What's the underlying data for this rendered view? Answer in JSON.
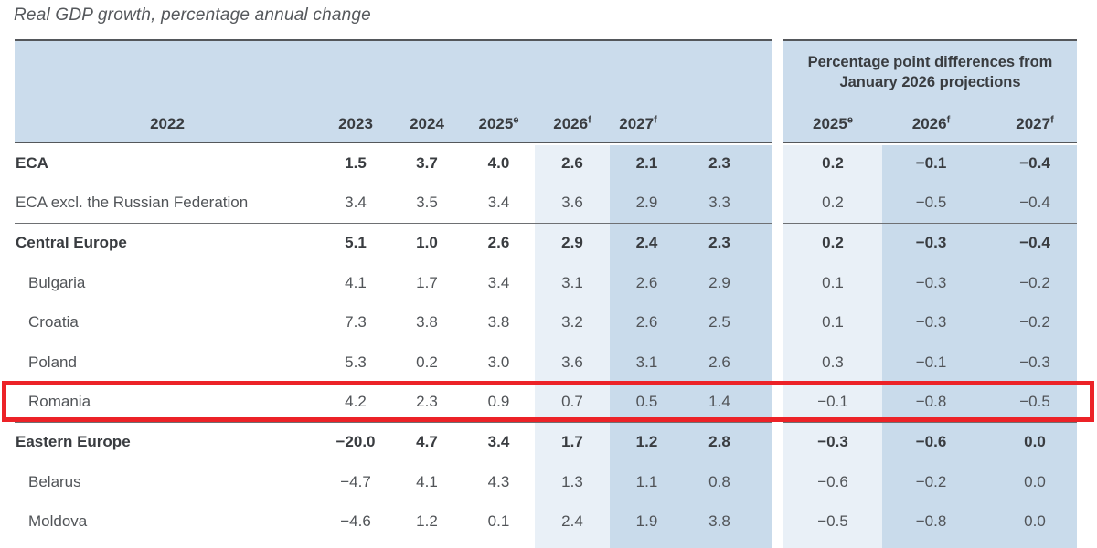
{
  "title": "Real GDP growth, percentage annual change",
  "header": {
    "diff_group_title": "Percentage point differences from January 2026 projections",
    "growth_years": [
      {
        "y": "2022",
        "sup": ""
      },
      {
        "y": "2023",
        "sup": ""
      },
      {
        "y": "2024",
        "sup": ""
      },
      {
        "y": "2025",
        "sup": "e"
      },
      {
        "y": "2026",
        "sup": "f"
      },
      {
        "y": "2027",
        "sup": "f"
      }
    ],
    "diff_years": [
      {
        "y": "2025",
        "sup": "e"
      },
      {
        "y": "2026",
        "sup": "f"
      },
      {
        "y": "2027",
        "sup": "f"
      }
    ]
  },
  "colors": {
    "header_blue": "#cbdcec",
    "dark_column_blue": "#c9dbeb",
    "light_column_blue": "#e9f0f7",
    "border_dark": "#54575b",
    "row_divider": "#6e7073",
    "text_regular": "#515458",
    "text_bold": "#393c40",
    "highlight_red": "#ec2227"
  },
  "highlight": {
    "row_label": "Romania"
  },
  "chart_data": {
    "type": "table",
    "title": "Real GDP growth, percentage annual change",
    "column_groups": [
      "Real GDP growth",
      "Percentage point differences from January 2026 projections"
    ],
    "columns": [
      "2022",
      "2023",
      "2024",
      "2025e",
      "2026f",
      "2027f",
      "2025e diff",
      "2026f diff",
      "2027f diff"
    ],
    "rows": [
      {
        "label": "ECA",
        "bold": true,
        "indent": false,
        "divider_above": false,
        "highlighted": false,
        "values": [
          "1.5",
          "3.7",
          "4.0",
          "2.6",
          "2.1",
          "2.3"
        ],
        "diffs": [
          "0.2",
          "−0.1",
          "−0.4"
        ]
      },
      {
        "label": "ECA excl. the Russian Federation",
        "bold": false,
        "indent": false,
        "divider_above": false,
        "highlighted": false,
        "values": [
          "3.4",
          "3.5",
          "3.4",
          "3.6",
          "2.9",
          "3.3"
        ],
        "diffs": [
          "0.2",
          "−0.5",
          "−0.4"
        ]
      },
      {
        "label": "Central Europe",
        "bold": true,
        "indent": false,
        "divider_above": true,
        "highlighted": false,
        "values": [
          "5.1",
          "1.0",
          "2.6",
          "2.9",
          "2.4",
          "2.3"
        ],
        "diffs": [
          "0.2",
          "−0.3",
          "−0.4"
        ]
      },
      {
        "label": "Bulgaria",
        "bold": false,
        "indent": true,
        "divider_above": false,
        "highlighted": false,
        "values": [
          "4.1",
          "1.7",
          "3.4",
          "3.1",
          "2.6",
          "2.9"
        ],
        "diffs": [
          "0.1",
          "−0.3",
          "−0.2"
        ]
      },
      {
        "label": "Croatia",
        "bold": false,
        "indent": true,
        "divider_above": false,
        "highlighted": false,
        "values": [
          "7.3",
          "3.8",
          "3.8",
          "3.2",
          "2.6",
          "2.5"
        ],
        "diffs": [
          "0.1",
          "−0.3",
          "−0.2"
        ]
      },
      {
        "label": "Poland",
        "bold": false,
        "indent": true,
        "divider_above": false,
        "highlighted": false,
        "values": [
          "5.3",
          "0.2",
          "3.0",
          "3.6",
          "3.1",
          "2.6"
        ],
        "diffs": [
          "0.3",
          "−0.1",
          "−0.3"
        ]
      },
      {
        "label": "Romania",
        "bold": false,
        "indent": true,
        "divider_above": false,
        "highlighted": true,
        "values": [
          "4.2",
          "2.3",
          "0.9",
          "0.7",
          "0.5",
          "1.4"
        ],
        "diffs": [
          "−0.1",
          "−0.8",
          "−0.5"
        ]
      },
      {
        "label": "Eastern Europe",
        "bold": true,
        "indent": false,
        "divider_above": true,
        "highlighted": false,
        "values": [
          "−20.0",
          "4.7",
          "3.4",
          "1.7",
          "1.2",
          "2.8"
        ],
        "diffs": [
          "−0.3",
          "−0.6",
          "0.0"
        ]
      },
      {
        "label": "Belarus",
        "bold": false,
        "indent": true,
        "divider_above": false,
        "highlighted": false,
        "values": [
          "−4.7",
          "4.1",
          "4.3",
          "1.3",
          "1.1",
          "0.8"
        ],
        "diffs": [
          "−0.6",
          "−0.2",
          "0.0"
        ]
      },
      {
        "label": "Moldova",
        "bold": false,
        "indent": true,
        "divider_above": false,
        "highlighted": false,
        "values": [
          "−4.6",
          "1.2",
          "0.1",
          "2.4",
          "1.9",
          "3.8"
        ],
        "diffs": [
          "−0.5",
          "−0.8",
          "0.0"
        ]
      }
    ]
  }
}
